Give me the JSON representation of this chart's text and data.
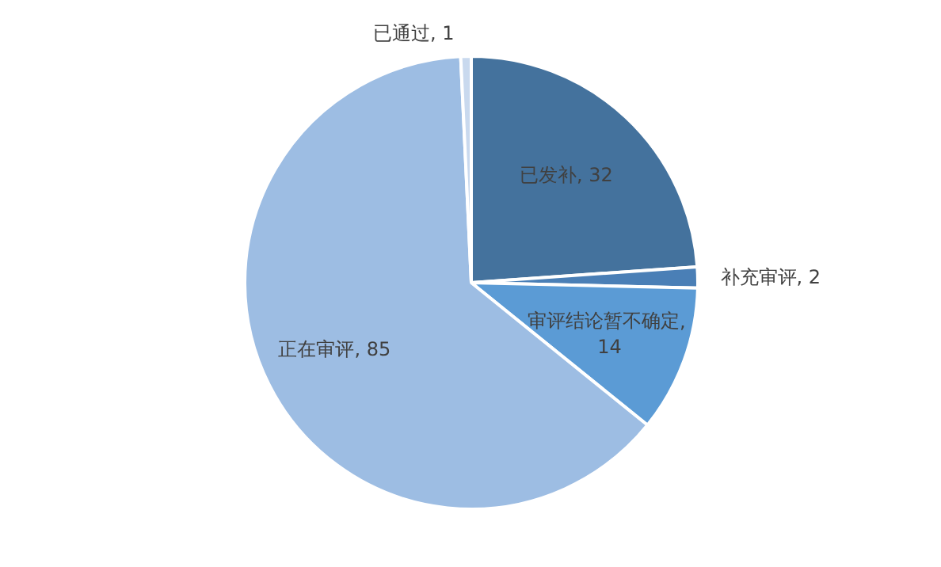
{
  "chart_data": {
    "type": "pie",
    "categories": [
      "已发补",
      "补充审评",
      "审评结论暂不确定",
      "正在审评",
      "已通过"
    ],
    "values": [
      32,
      2,
      14,
      85,
      1
    ],
    "value_labels": [
      ", 32",
      ", 2",
      ", 14",
      ", 85",
      ", 1"
    ],
    "colors": [
      "#44729d",
      "#4a7fb6",
      "#5b9bd5",
      "#9dbde3",
      "#c9d9ee"
    ]
  }
}
